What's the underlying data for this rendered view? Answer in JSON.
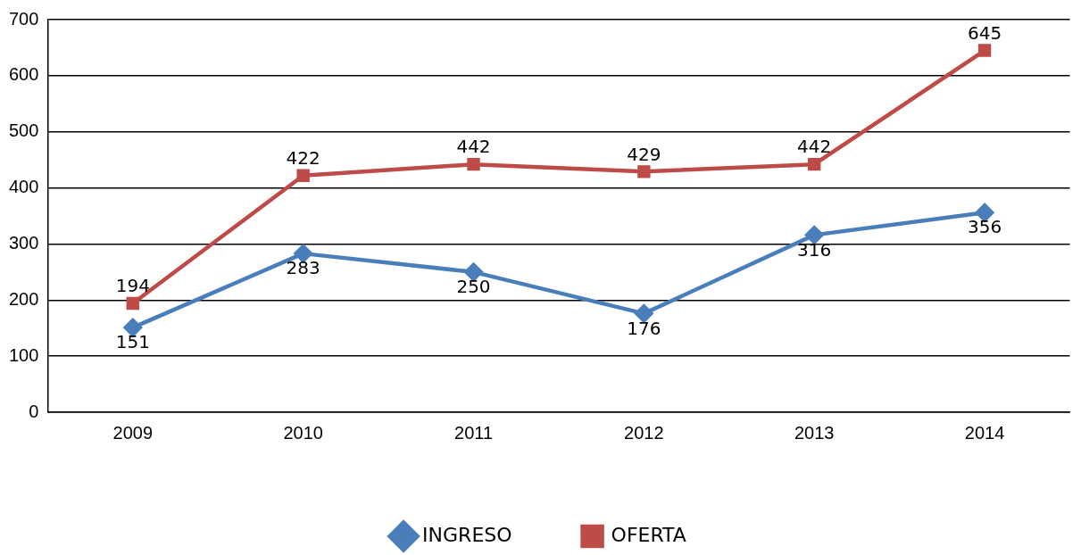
{
  "chart_data": {
    "type": "line",
    "categories": [
      "2009",
      "2010",
      "2011",
      "2012",
      "2013",
      "2014"
    ],
    "series": [
      {
        "name": "INGRESO",
        "color": "#4a7ebb",
        "values": [
          151,
          283,
          250,
          176,
          316,
          356
        ],
        "marker": "diamond"
      },
      {
        "name": "OFERTA",
        "color": "#be4b48",
        "values": [
          194,
          422,
          442,
          429,
          442,
          645
        ],
        "marker": "square"
      }
    ],
    "ylim": [
      0,
      700
    ],
    "yticks": [
      0,
      100,
      200,
      300,
      400,
      500,
      600,
      700
    ],
    "grid": "y",
    "legend": "bottom",
    "data_labels": true,
    "line_style": "solid"
  }
}
